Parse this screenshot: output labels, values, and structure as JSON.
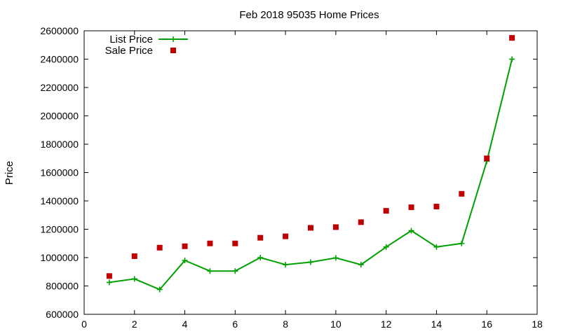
{
  "chart_data": {
    "type": "line",
    "title": "Feb 2018 95035 Home Prices",
    "xlabel": "",
    "ylabel": "Price",
    "xlim": [
      0,
      18
    ],
    "ylim": [
      600000,
      2600000
    ],
    "grid": false,
    "legend_position": "top-left",
    "x_ticks": [
      "0",
      "2",
      "4",
      "6",
      "8",
      "10",
      "12",
      "14",
      "16",
      "18"
    ],
    "y_ticks": [
      "600000",
      "800000",
      "1000000",
      "1200000",
      "1400000",
      "1600000",
      "1800000",
      "2000000",
      "2200000",
      "2400000",
      "2600000"
    ],
    "series": [
      {
        "name": "List Price",
        "style": "line+cross",
        "color": "#00a000",
        "x": [
          1,
          2,
          3,
          4,
          5,
          6,
          7,
          8,
          9,
          10,
          11,
          12,
          13,
          14,
          15,
          16,
          17
        ],
        "values": [
          825000,
          850000,
          775000,
          980000,
          905000,
          905000,
          1000000,
          950000,
          968000,
          998000,
          950000,
          1075000,
          1190000,
          1075000,
          1100000,
          1680000,
          2400000
        ]
      },
      {
        "name": "Sale Price",
        "style": "square",
        "color": "#c00000",
        "x": [
          1,
          2,
          3,
          4,
          5,
          6,
          7,
          8,
          9,
          10,
          11,
          12,
          13,
          14,
          15,
          16,
          17
        ],
        "values": [
          870000,
          1010000,
          1070000,
          1080000,
          1100000,
          1100000,
          1140000,
          1150000,
          1210000,
          1215000,
          1250000,
          1330000,
          1355000,
          1360000,
          1450000,
          1700000,
          2550000
        ]
      }
    ]
  }
}
